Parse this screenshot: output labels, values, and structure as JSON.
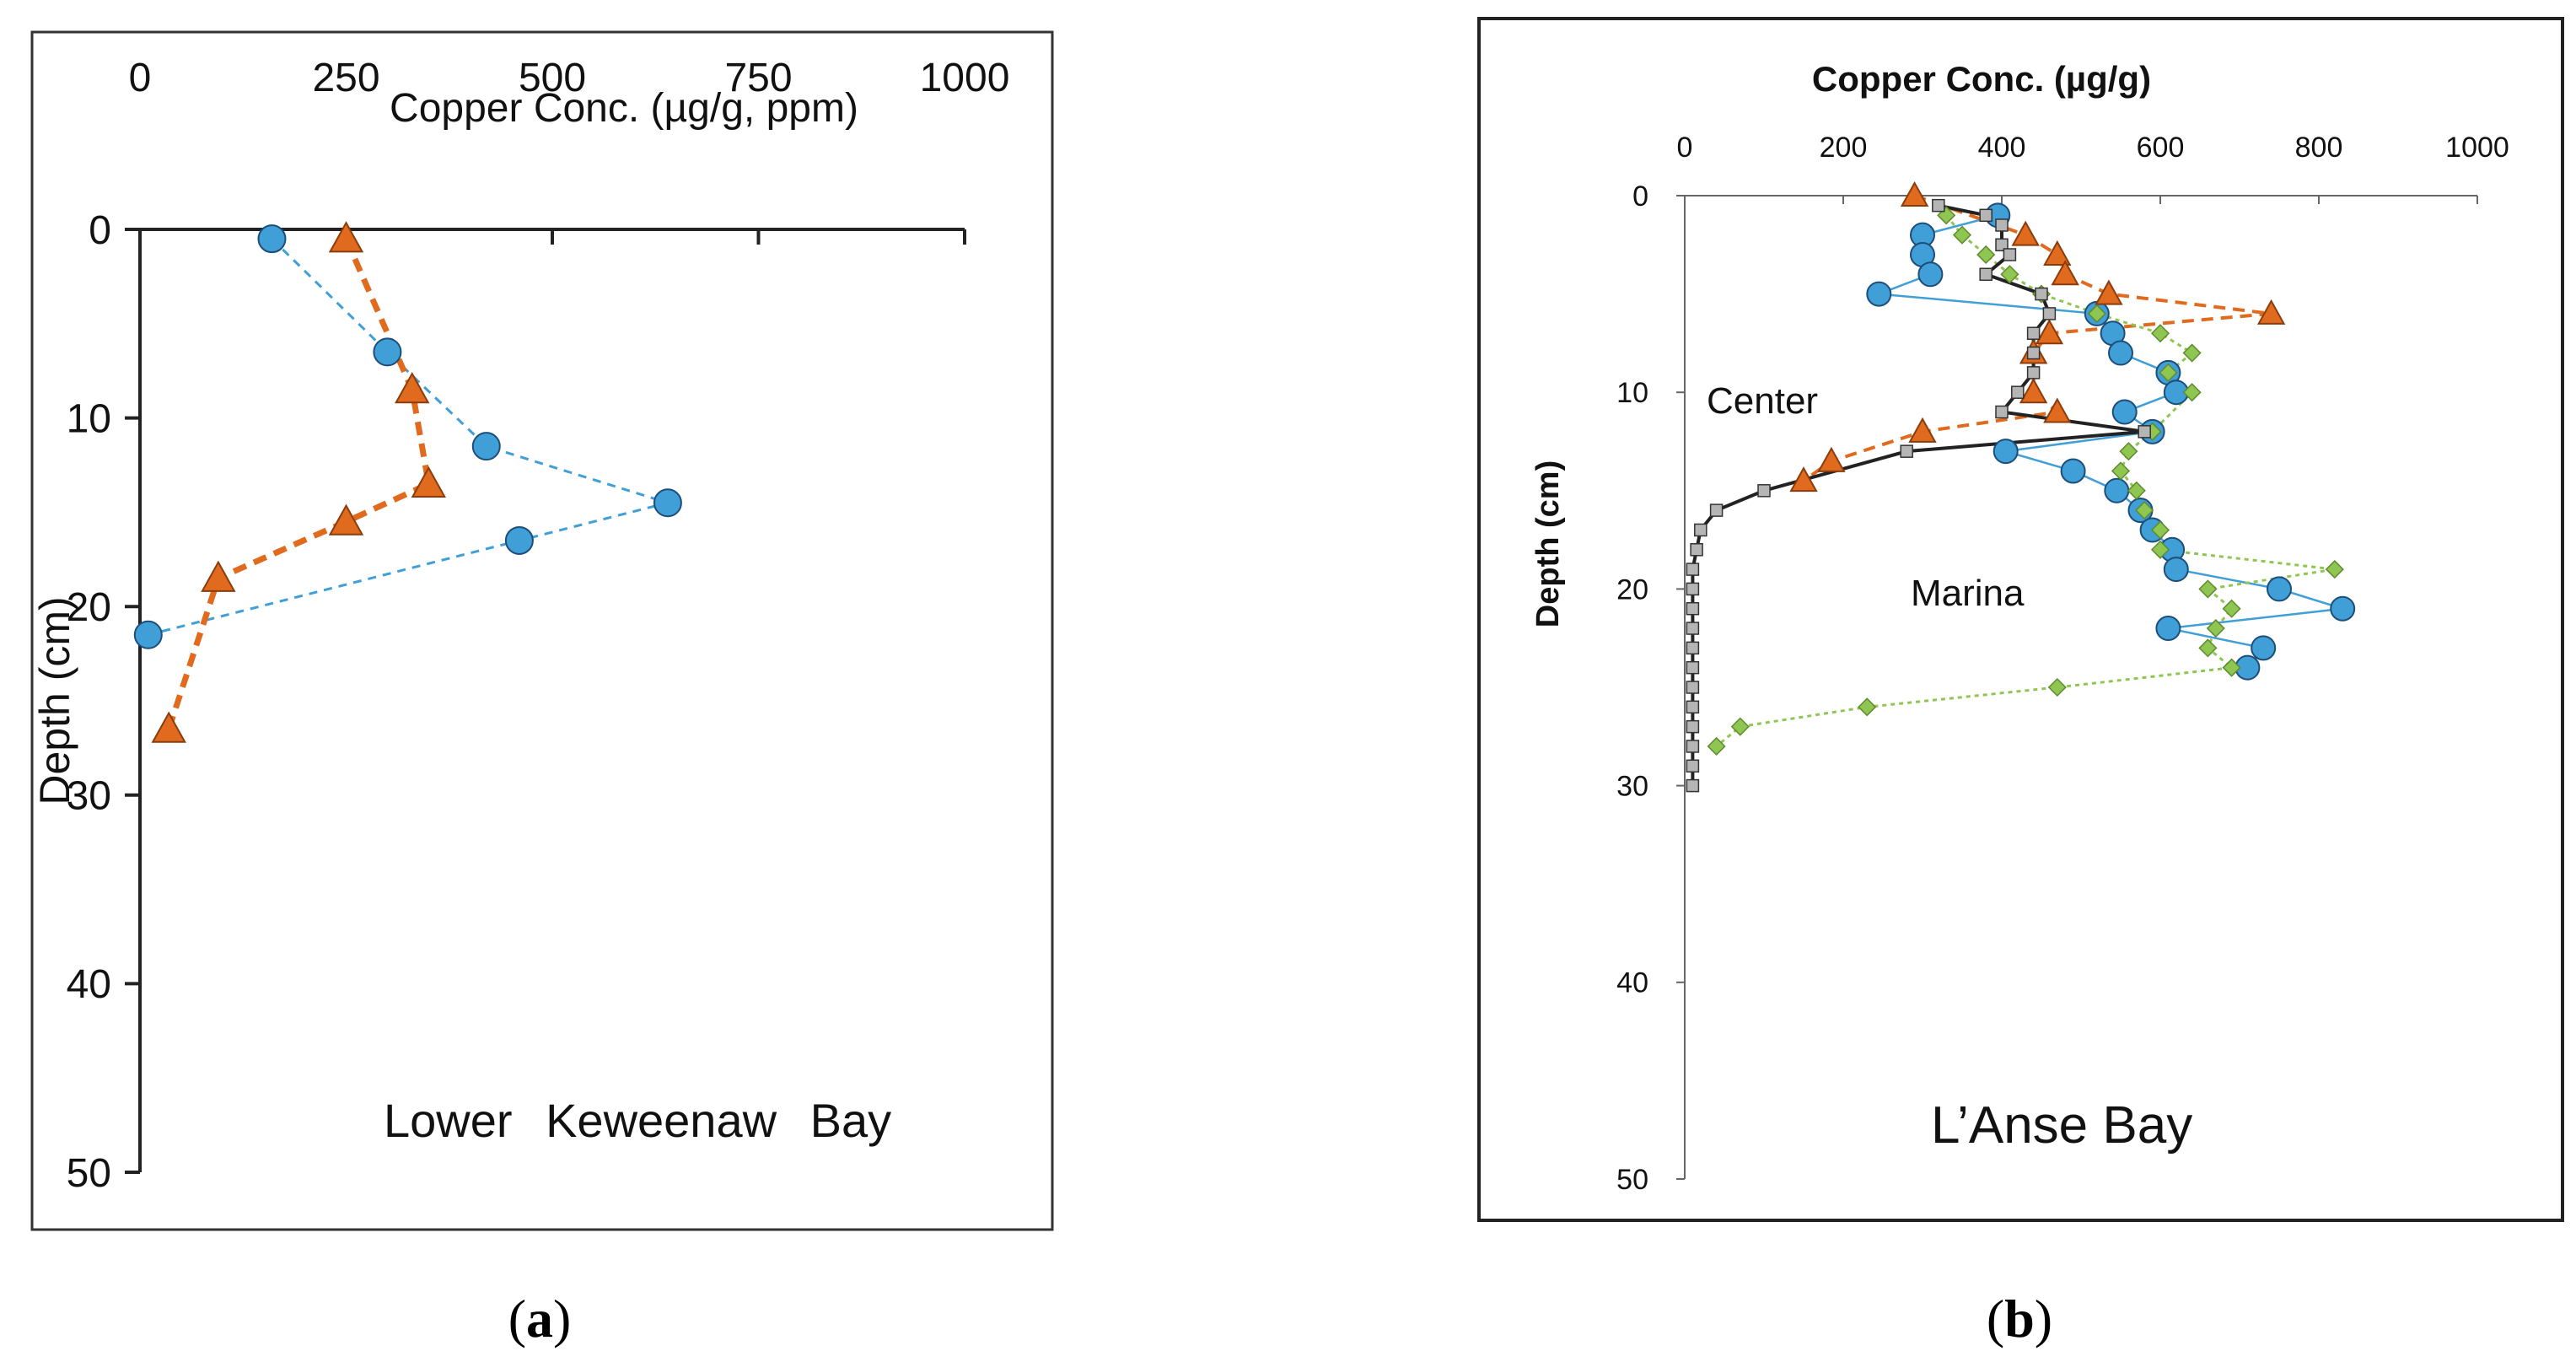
{
  "colors": {
    "blue_fill": "#3f9fd6",
    "blue_line": "#3f9fd6",
    "orange": "#e06b1f",
    "green": "#8fc652",
    "black_line": "#222222",
    "square_fill": "#b5b5b5"
  },
  "captions": {
    "a_open": "(",
    "a_letter": "a",
    "a_close": ")",
    "b_open": "(",
    "b_letter": "b",
    "b_close": ")"
  },
  "chart_data": [
    {
      "type": "scatter",
      "panel": "a",
      "title": "",
      "xlabel": "Copper Conc. (µg/g, ppm)",
      "ylabel": "Depth (cm)",
      "annotation": "Lower Keweenaw Bay",
      "xlim": [
        0,
        1000
      ],
      "ylim": [
        0,
        50
      ],
      "y_inverted": true,
      "x_axis_position": "top",
      "x_ticks": [
        0,
        250,
        500,
        750,
        1000
      ],
      "x_tick_labels": [
        "0",
        "250",
        "500",
        "750",
        "1000"
      ],
      "y_ticks": [
        0,
        10,
        20,
        30,
        40,
        50
      ],
      "y_tick_labels": [
        "0",
        "10",
        "20",
        "30",
        "40",
        "50"
      ],
      "grid": false,
      "series": [
        {
          "marker": "circle",
          "line": "dashed",
          "color_key": "blue_fill",
          "points": [
            [
              160,
              0.5
            ],
            [
              300,
              6.5
            ],
            [
              420,
              11.5
            ],
            [
              640,
              14.5
            ],
            [
              460,
              16.5
            ],
            [
              10,
              21.5
            ]
          ]
        },
        {
          "marker": "triangle",
          "line": "dashed-thick",
          "color_key": "orange",
          "points": [
            [
              250,
              0.5
            ],
            [
              330,
              8.5
            ],
            [
              350,
              13.5
            ],
            [
              250,
              15.5
            ],
            [
              95,
              18.5
            ],
            [
              35,
              26.5
            ]
          ]
        }
      ]
    },
    {
      "type": "scatter",
      "panel": "b",
      "title": "",
      "xlabel": "Copper Conc. (µg/g)",
      "ylabel": "Depth (cm)",
      "annotations": [
        "Center",
        "Marina",
        "L’Anse Bay"
      ],
      "xlim": [
        0,
        1000
      ],
      "ylim": [
        0,
        50
      ],
      "y_inverted": true,
      "x_axis_position": "top",
      "x_ticks": [
        0,
        200,
        400,
        600,
        800,
        1000
      ],
      "x_tick_labels": [
        "0",
        "200",
        "400",
        "600",
        "800",
        "1000"
      ],
      "y_ticks": [
        0,
        10,
        20,
        30,
        40,
        50
      ],
      "y_tick_labels": [
        "0",
        "10",
        "20",
        "30",
        "40",
        "50"
      ],
      "grid": false,
      "series": [
        {
          "marker": "circle",
          "line": "solid-thin",
          "color_key": "blue_line",
          "points": [
            [
              395,
              1
            ],
            [
              300,
              2
            ],
            [
              300,
              3
            ],
            [
              310,
              4
            ],
            [
              245,
              5
            ],
            [
              520,
              6
            ],
            [
              540,
              7
            ],
            [
              550,
              8
            ],
            [
              610,
              9
            ],
            [
              620,
              10
            ],
            [
              555,
              11
            ],
            [
              590,
              12
            ],
            [
              405,
              13
            ],
            [
              490,
              14
            ],
            [
              545,
              15
            ],
            [
              575,
              16
            ],
            [
              590,
              17
            ],
            [
              615,
              18
            ],
            [
              620,
              19
            ],
            [
              750,
              20
            ],
            [
              830,
              21
            ],
            [
              610,
              22
            ],
            [
              730,
              23
            ],
            [
              710,
              24
            ]
          ]
        },
        {
          "marker": "triangle",
          "line": "dashed",
          "color_key": "orange",
          "points": [
            [
              290,
              0
            ],
            [
              430,
              2
            ],
            [
              470,
              3
            ],
            [
              480,
              4
            ],
            [
              535,
              5
            ],
            [
              740,
              6
            ],
            [
              460,
              7
            ],
            [
              440,
              8
            ],
            [
              440,
              10
            ],
            [
              470,
              11
            ],
            [
              300,
              12
            ],
            [
              185,
              13.5
            ],
            [
              150,
              14.5
            ]
          ]
        },
        {
          "marker": "diamond",
          "line": "dotted",
          "color_key": "green",
          "points": [
            [
              330,
              1
            ],
            [
              350,
              2
            ],
            [
              380,
              3
            ],
            [
              410,
              4
            ],
            [
              450,
              5
            ],
            [
              520,
              6
            ],
            [
              600,
              7
            ],
            [
              640,
              8
            ],
            [
              610,
              9
            ],
            [
              640,
              10
            ],
            [
              590,
              12
            ],
            [
              560,
              13
            ],
            [
              550,
              14
            ],
            [
              570,
              15
            ],
            [
              580,
              16
            ],
            [
              600,
              17
            ],
            [
              600,
              18
            ],
            [
              820,
              19
            ],
            [
              660,
              20
            ],
            [
              690,
              21
            ],
            [
              670,
              22
            ],
            [
              660,
              23
            ],
            [
              690,
              24
            ],
            [
              470,
              25
            ],
            [
              230,
              26
            ],
            [
              70,
              27
            ],
            [
              40,
              28
            ]
          ]
        },
        {
          "marker": "square",
          "line": "solid",
          "color_key": "black_line",
          "points": [
            [
              320,
              0.5
            ],
            [
              380,
              1
            ],
            [
              400,
              1.5
            ],
            [
              400,
              2.5
            ],
            [
              410,
              3
            ],
            [
              380,
              4
            ],
            [
              450,
              5
            ],
            [
              460,
              6
            ],
            [
              440,
              7
            ],
            [
              440,
              8
            ],
            [
              440,
              9
            ],
            [
              420,
              10
            ],
            [
              400,
              11
            ],
            [
              580,
              12
            ],
            [
              280,
              13
            ],
            [
              100,
              15
            ],
            [
              40,
              16
            ],
            [
              20,
              17
            ],
            [
              15,
              18
            ],
            [
              10,
              19
            ],
            [
              10,
              20
            ],
            [
              10,
              21
            ],
            [
              10,
              22
            ],
            [
              10,
              23
            ],
            [
              10,
              24
            ],
            [
              10,
              25
            ],
            [
              10,
              26
            ],
            [
              10,
              27
            ],
            [
              10,
              28
            ],
            [
              10,
              29
            ],
            [
              10,
              30
            ]
          ]
        }
      ]
    }
  ]
}
